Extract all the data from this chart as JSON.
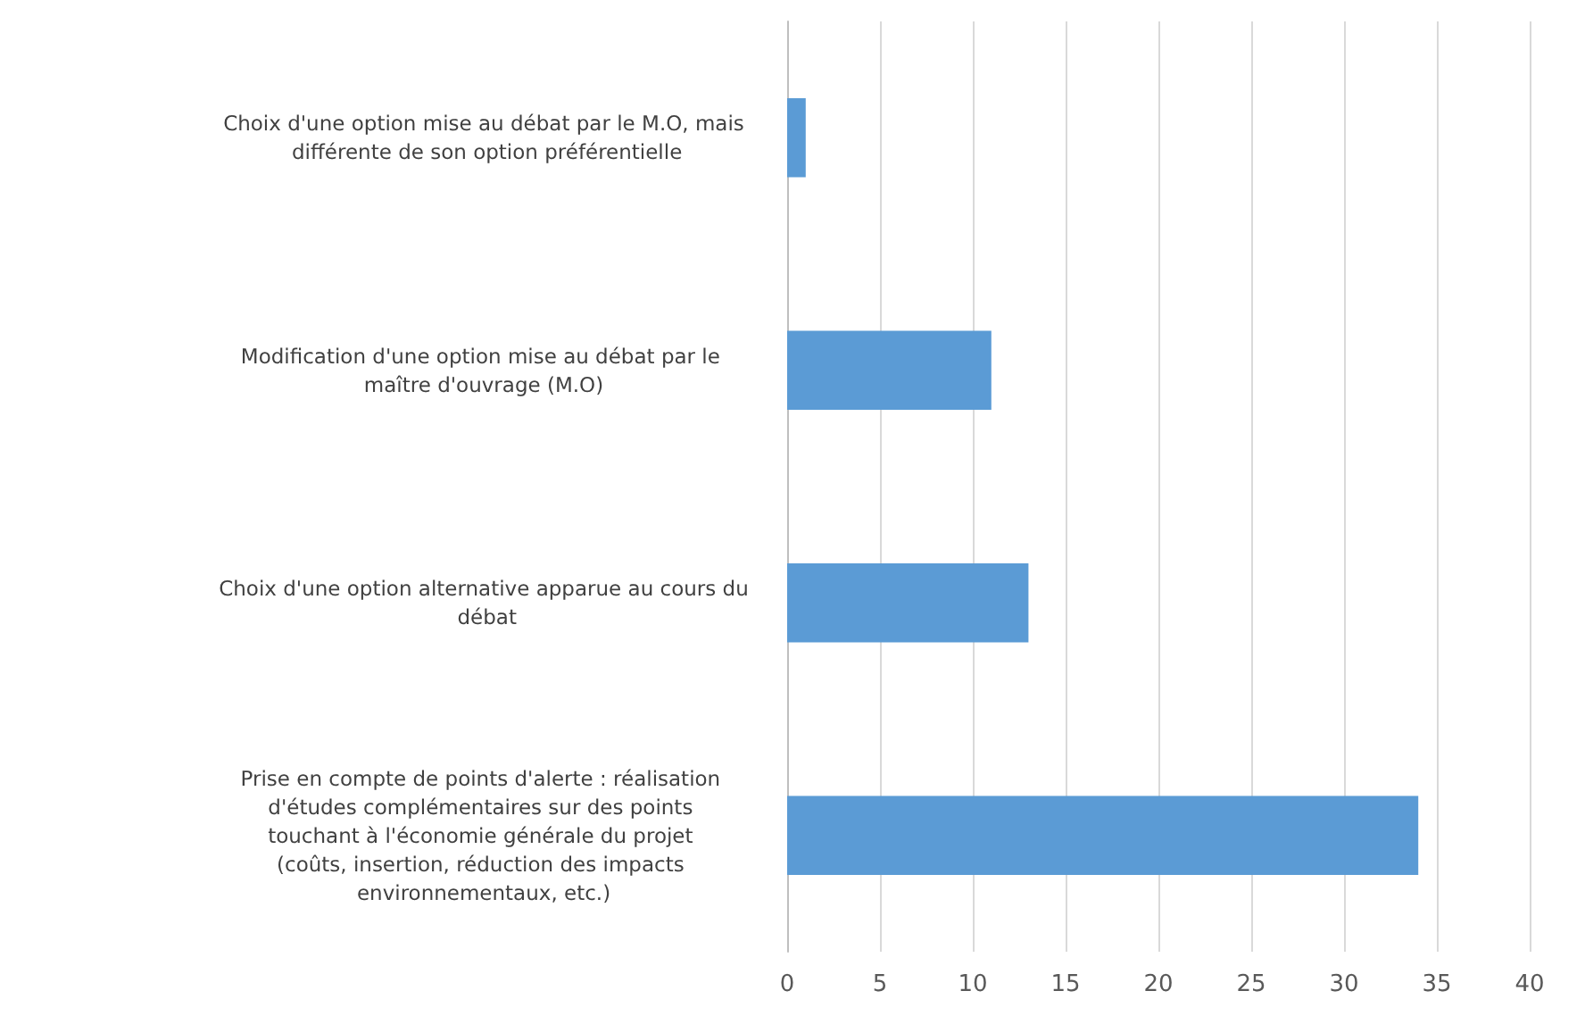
{
  "chart_data": {
    "type": "bar",
    "orientation": "horizontal",
    "categories": [
      "Choix d'une option mise au débat par le M.O, mais différente de son option préférentielle",
      "Modification d'une option mise au débat par le maître d'ouvrage (M.O)",
      "Choix d'une option alternative apparue au cours du débat",
      "Prise en compte de points d'alerte : réalisation d'études complémentaires sur des points touchant à l'économie générale du projet (coûts, insertion, réduction des impacts environnementaux, etc.)"
    ],
    "values": [
      1,
      11,
      13,
      34
    ],
    "color": "#5b9bd5",
    "xlim": [
      0,
      40
    ],
    "xticks": [
      0,
      5,
      10,
      15,
      20,
      25,
      30,
      35,
      40
    ],
    "grid": "x"
  }
}
